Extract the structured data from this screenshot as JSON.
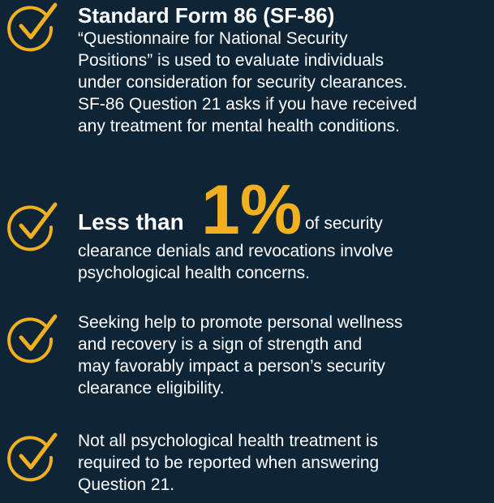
{
  "items": [
    {
      "title": "Standard Form 86 (SF-86)",
      "lines": [
        "“Questionnaire for National Security",
        "Positions” is used to evaluate individuals",
        "under consideration for security clearances.",
        "SF-86 Question 21 asks if you have received",
        "any treatment for mental health conditions."
      ]
    },
    {
      "lead": "Less than",
      "highlight": "1%",
      "tail": "of security",
      "lines": [
        "clearance denials and revocations involve",
        "psychological health concerns."
      ]
    },
    {
      "lines": [
        "Seeking help to promote personal wellness",
        "and recovery is a sign of strength and",
        "may favorably impact a person’s security",
        "clearance eligibility."
      ]
    },
    {
      "lines": [
        "Not all psychological health treatment is",
        "required to be reported when answering",
        "Question 21."
      ]
    }
  ]
}
